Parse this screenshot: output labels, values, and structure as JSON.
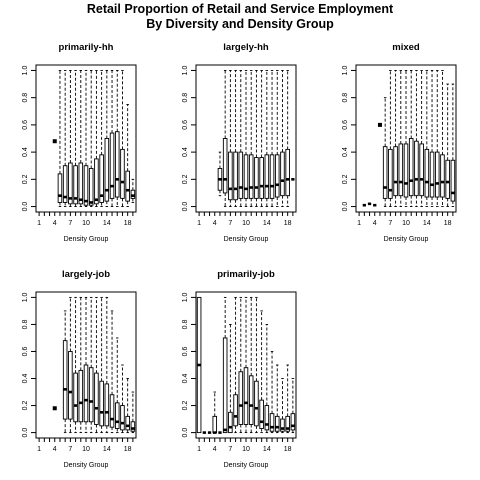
{
  "title_lines": [
    "Retail Proportion of Retail and Service Employment",
    "By Diversity and Density Group"
  ],
  "chart_data": [
    {
      "type": "boxplot",
      "title": "primarily-hh",
      "xlabel": "Density Group",
      "ylabel": "",
      "ylim": [
        0,
        1
      ],
      "yticks": [
        "0.0",
        "0.2",
        "0.4",
        "0.6",
        "0.8",
        "1.0"
      ],
      "xtick_labels": {
        "1": "1",
        "4": "4",
        "7": "7",
        "10": "10",
        "14": "14",
        "18": "18"
      },
      "groups": [
        {
          "x": 4,
          "outliers": [
            0.48
          ]
        },
        {
          "x": 5,
          "min": 0,
          "q1": 0.03,
          "median": 0.08,
          "q3": 0.24,
          "max": 1.0
        },
        {
          "x": 6,
          "min": 0,
          "q1": 0.03,
          "median": 0.07,
          "q3": 0.3,
          "max": 1.0
        },
        {
          "x": 7,
          "min": 0,
          "q1": 0.02,
          "median": 0.06,
          "q3": 0.32,
          "max": 1.0
        },
        {
          "x": 8,
          "min": 0,
          "q1": 0.02,
          "median": 0.06,
          "q3": 0.3,
          "max": 1.0
        },
        {
          "x": 9,
          "min": 0,
          "q1": 0.02,
          "median": 0.05,
          "q3": 0.32,
          "max": 1.0
        },
        {
          "x": 10,
          "min": 0,
          "q1": 0.01,
          "median": 0.04,
          "q3": 0.3,
          "max": 1.0
        },
        {
          "x": 11,
          "min": 0,
          "q1": 0.01,
          "median": 0.03,
          "q3": 0.28,
          "max": 1.0
        },
        {
          "x": 12,
          "min": 0,
          "q1": 0.02,
          "median": 0.05,
          "q3": 0.35,
          "max": 1.0
        },
        {
          "x": 13,
          "min": 0,
          "q1": 0.03,
          "median": 0.08,
          "q3": 0.38,
          "max": 1.0
        },
        {
          "x": 14,
          "min": 0,
          "q1": 0.04,
          "median": 0.12,
          "q3": 0.5,
          "max": 1.0
        },
        {
          "x": 15,
          "min": 0,
          "q1": 0.06,
          "median": 0.15,
          "q3": 0.54,
          "max": 1.0
        },
        {
          "x": 16,
          "min": 0,
          "q1": 0.07,
          "median": 0.2,
          "q3": 0.55,
          "max": 1.0
        },
        {
          "x": 17,
          "min": 0,
          "q1": 0.06,
          "median": 0.18,
          "q3": 0.42,
          "max": 1.0
        },
        {
          "x": 18,
          "min": 0,
          "q1": 0.04,
          "median": 0.12,
          "q3": 0.26,
          "max": 0.75
        },
        {
          "x": 19,
          "min": 0.03,
          "q1": 0.06,
          "median": 0.08,
          "q3": 0.12,
          "max": 0.2
        }
      ]
    },
    {
      "type": "boxplot",
      "title": "largely-hh",
      "xlabel": "Density Group",
      "ylabel": "",
      "ylim": [
        0,
        1
      ],
      "yticks": [
        "0.0",
        "0.2",
        "0.4",
        "0.6",
        "0.8",
        "1.0"
      ],
      "xtick_labels": {
        "1": "1",
        "4": "4",
        "7": "7",
        "10": "10",
        "14": "14",
        "18": "18"
      },
      "groups": [
        {
          "x": 5,
          "min": 0.08,
          "q1": 0.12,
          "median": 0.2,
          "q3": 0.28,
          "max": 0.4
        },
        {
          "x": 6,
          "min": 0,
          "q1": 0.1,
          "median": 0.2,
          "q3": 0.5,
          "max": 1.0
        },
        {
          "x": 7,
          "min": 0,
          "q1": 0.05,
          "median": 0.13,
          "q3": 0.4,
          "max": 1.0
        },
        {
          "x": 8,
          "min": 0,
          "q1": 0.05,
          "median": 0.13,
          "q3": 0.4,
          "max": 1.0
        },
        {
          "x": 9,
          "min": 0,
          "q1": 0.06,
          "median": 0.14,
          "q3": 0.4,
          "max": 1.0
        },
        {
          "x": 10,
          "min": 0,
          "q1": 0.06,
          "median": 0.13,
          "q3": 0.38,
          "max": 1.0
        },
        {
          "x": 11,
          "min": 0,
          "q1": 0.06,
          "median": 0.14,
          "q3": 0.38,
          "max": 1.0
        },
        {
          "x": 12,
          "min": 0,
          "q1": 0.06,
          "median": 0.14,
          "q3": 0.36,
          "max": 1.0
        },
        {
          "x": 13,
          "min": 0,
          "q1": 0.06,
          "median": 0.15,
          "q3": 0.36,
          "max": 1.0
        },
        {
          "x": 14,
          "min": 0,
          "q1": 0.06,
          "median": 0.15,
          "q3": 0.38,
          "max": 1.0
        },
        {
          "x": 15,
          "min": 0,
          "q1": 0.06,
          "median": 0.15,
          "q3": 0.38,
          "max": 1.0
        },
        {
          "x": 16,
          "min": 0,
          "q1": 0.07,
          "median": 0.16,
          "q3": 0.38,
          "max": 1.0
        },
        {
          "x": 17,
          "min": 0,
          "q1": 0.08,
          "median": 0.19,
          "q3": 0.4,
          "max": 1.0
        },
        {
          "x": 18,
          "min": 0,
          "q1": 0.08,
          "median": 0.2,
          "q3": 0.42,
          "max": 1.0
        },
        {
          "x": 19,
          "median": 0.2
        }
      ]
    },
    {
      "type": "boxplot",
      "title": "mixed",
      "xlabel": "Density Group",
      "ylabel": "",
      "ylim": [
        0,
        1
      ],
      "yticks": [
        "0.0",
        "0.2",
        "0.4",
        "0.6",
        "0.8",
        "1.0"
      ],
      "xtick_labels": {
        "1": "1",
        "4": "4",
        "7": "7",
        "10": "10",
        "14": "14",
        "18": "18"
      },
      "groups": [
        {
          "x": 2,
          "median": 0.01
        },
        {
          "x": 3,
          "median": 0.02
        },
        {
          "x": 4,
          "median": 0.01
        },
        {
          "x": 5,
          "outliers": [
            0.6
          ]
        },
        {
          "x": 6,
          "min": 0,
          "q1": 0.06,
          "median": 0.14,
          "q3": 0.44,
          "max": 0.8
        },
        {
          "x": 7,
          "min": 0,
          "q1": 0.06,
          "median": 0.12,
          "q3": 0.42,
          "max": 1.0
        },
        {
          "x": 8,
          "min": 0,
          "q1": 0.08,
          "median": 0.18,
          "q3": 0.44,
          "max": 1.0
        },
        {
          "x": 9,
          "min": 0,
          "q1": 0.08,
          "median": 0.18,
          "q3": 0.46,
          "max": 1.0
        },
        {
          "x": 10,
          "min": 0,
          "q1": 0.07,
          "median": 0.17,
          "q3": 0.46,
          "max": 1.0
        },
        {
          "x": 11,
          "min": 0,
          "q1": 0.08,
          "median": 0.19,
          "q3": 0.5,
          "max": 1.0
        },
        {
          "x": 12,
          "min": 0,
          "q1": 0.08,
          "median": 0.2,
          "q3": 0.48,
          "max": 1.0
        },
        {
          "x": 13,
          "min": 0,
          "q1": 0.08,
          "median": 0.2,
          "q3": 0.46,
          "max": 1.0
        },
        {
          "x": 14,
          "min": 0,
          "q1": 0.07,
          "median": 0.18,
          "q3": 0.42,
          "max": 1.0
        },
        {
          "x": 15,
          "min": 0,
          "q1": 0.07,
          "median": 0.16,
          "q3": 0.4,
          "max": 1.0
        },
        {
          "x": 16,
          "min": 0,
          "q1": 0.07,
          "median": 0.17,
          "q3": 0.4,
          "max": 1.0
        },
        {
          "x": 17,
          "min": 0,
          "q1": 0.07,
          "median": 0.18,
          "q3": 0.38,
          "max": 1.0
        },
        {
          "x": 18,
          "min": 0,
          "q1": 0.06,
          "median": 0.18,
          "q3": 0.34,
          "max": 0.9
        },
        {
          "x": 19,
          "min": 0,
          "q1": 0.04,
          "median": 0.1,
          "q3": 0.34,
          "max": 0.9
        }
      ]
    },
    {
      "type": "boxplot",
      "title": "largely-job",
      "xlabel": "Density Group",
      "ylabel": "",
      "ylim": [
        0,
        1
      ],
      "yticks": [
        "0.0",
        "0.2",
        "0.4",
        "0.6",
        "0.8",
        "1.0"
      ],
      "xtick_labels": {
        "1": "1",
        "4": "4",
        "7": "7",
        "10": "10",
        "14": "14",
        "18": "18"
      },
      "groups": [
        {
          "x": 4,
          "outliers": [
            0.18
          ]
        },
        {
          "x": 6,
          "min": 0,
          "q1": 0.1,
          "median": 0.32,
          "q3": 0.68,
          "max": 0.9
        },
        {
          "x": 7,
          "min": 0,
          "q1": 0.1,
          "median": 0.3,
          "q3": 0.6,
          "max": 1.0
        },
        {
          "x": 8,
          "min": 0,
          "q1": 0.08,
          "median": 0.2,
          "q3": 0.44,
          "max": 1.0
        },
        {
          "x": 9,
          "min": 0,
          "q1": 0.08,
          "median": 0.22,
          "q3": 0.46,
          "max": 1.0
        },
        {
          "x": 10,
          "min": 0,
          "q1": 0.08,
          "median": 0.24,
          "q3": 0.5,
          "max": 1.0
        },
        {
          "x": 11,
          "min": 0,
          "q1": 0.08,
          "median": 0.23,
          "q3": 0.48,
          "max": 1.0
        },
        {
          "x": 12,
          "min": 0,
          "q1": 0.06,
          "median": 0.18,
          "q3": 0.44,
          "max": 1.0
        },
        {
          "x": 13,
          "min": 0,
          "q1": 0.05,
          "median": 0.15,
          "q3": 0.38,
          "max": 1.0
        },
        {
          "x": 14,
          "min": 0,
          "q1": 0.05,
          "median": 0.15,
          "q3": 0.36,
          "max": 1.0
        },
        {
          "x": 15,
          "min": 0,
          "q1": 0.04,
          "median": 0.1,
          "q3": 0.28,
          "max": 0.9
        },
        {
          "x": 16,
          "min": 0,
          "q1": 0.03,
          "median": 0.08,
          "q3": 0.22,
          "max": 0.7
        },
        {
          "x": 17,
          "min": 0,
          "q1": 0.02,
          "median": 0.07,
          "q3": 0.2,
          "max": 0.5
        },
        {
          "x": 18,
          "min": 0,
          "q1": 0.02,
          "median": 0.05,
          "q3": 0.12,
          "max": 0.4
        },
        {
          "x": 19,
          "min": 0,
          "q1": 0.01,
          "median": 0.03,
          "q3": 0.08,
          "max": 0.3
        }
      ]
    },
    {
      "type": "boxplot",
      "title": "primarily-job",
      "xlabel": "Density Group",
      "ylabel": "",
      "ylim": [
        0,
        1
      ],
      "yticks": [
        "0.0",
        "0.2",
        "0.4",
        "0.6",
        "0.8",
        "1.0"
      ],
      "xtick_labels": {
        "1": "1",
        "4": "4",
        "7": "7",
        "10": "10",
        "14": "14",
        "18": "18"
      },
      "groups": [
        {
          "x": 1,
          "min": 0,
          "q1": 0,
          "median": 0.5,
          "q3": 1.0,
          "max": 1.0
        },
        {
          "x": 2,
          "median": 0
        },
        {
          "x": 3,
          "median": 0
        },
        {
          "x": 4,
          "min": 0,
          "q1": 0,
          "median": 0,
          "q3": 0.12,
          "max": 0.3
        },
        {
          "x": 5,
          "median": 0
        },
        {
          "x": 6,
          "min": 0,
          "q1": 0,
          "median": 0.02,
          "q3": 0.7,
          "max": 1.0
        },
        {
          "x": 7,
          "min": 0,
          "q1": 0,
          "median": 0.04,
          "q3": 0.15,
          "max": 0.8
        },
        {
          "x": 8,
          "min": 0,
          "q1": 0.05,
          "median": 0.12,
          "q3": 0.28,
          "max": 1.0
        },
        {
          "x": 9,
          "min": 0,
          "q1": 0.06,
          "median": 0.2,
          "q3": 0.45,
          "max": 1.0
        },
        {
          "x": 10,
          "min": 0,
          "q1": 0.06,
          "median": 0.22,
          "q3": 0.48,
          "max": 1.0
        },
        {
          "x": 11,
          "min": 0,
          "q1": 0.06,
          "median": 0.2,
          "q3": 0.42,
          "max": 1.0
        },
        {
          "x": 12,
          "min": 0,
          "q1": 0.05,
          "median": 0.18,
          "q3": 0.38,
          "max": 1.0
        },
        {
          "x": 13,
          "min": 0,
          "q1": 0.03,
          "median": 0.08,
          "q3": 0.24,
          "max": 0.9
        },
        {
          "x": 14,
          "min": 0,
          "q1": 0.02,
          "median": 0.06,
          "q3": 0.2,
          "max": 0.8
        },
        {
          "x": 15,
          "min": 0,
          "q1": 0.01,
          "median": 0.04,
          "q3": 0.14,
          "max": 0.6
        },
        {
          "x": 16,
          "min": 0,
          "q1": 0.01,
          "median": 0.04,
          "q3": 0.12,
          "max": 0.5
        },
        {
          "x": 17,
          "min": 0,
          "q1": 0.01,
          "median": 0.03,
          "q3": 0.1,
          "max": 0.4
        },
        {
          "x": 18,
          "min": 0,
          "q1": 0.01,
          "median": 0.03,
          "q3": 0.12,
          "max": 0.5
        },
        {
          "x": 19,
          "min": 0,
          "q1": 0.02,
          "median": 0.05,
          "q3": 0.14,
          "max": 0.4
        }
      ]
    }
  ]
}
